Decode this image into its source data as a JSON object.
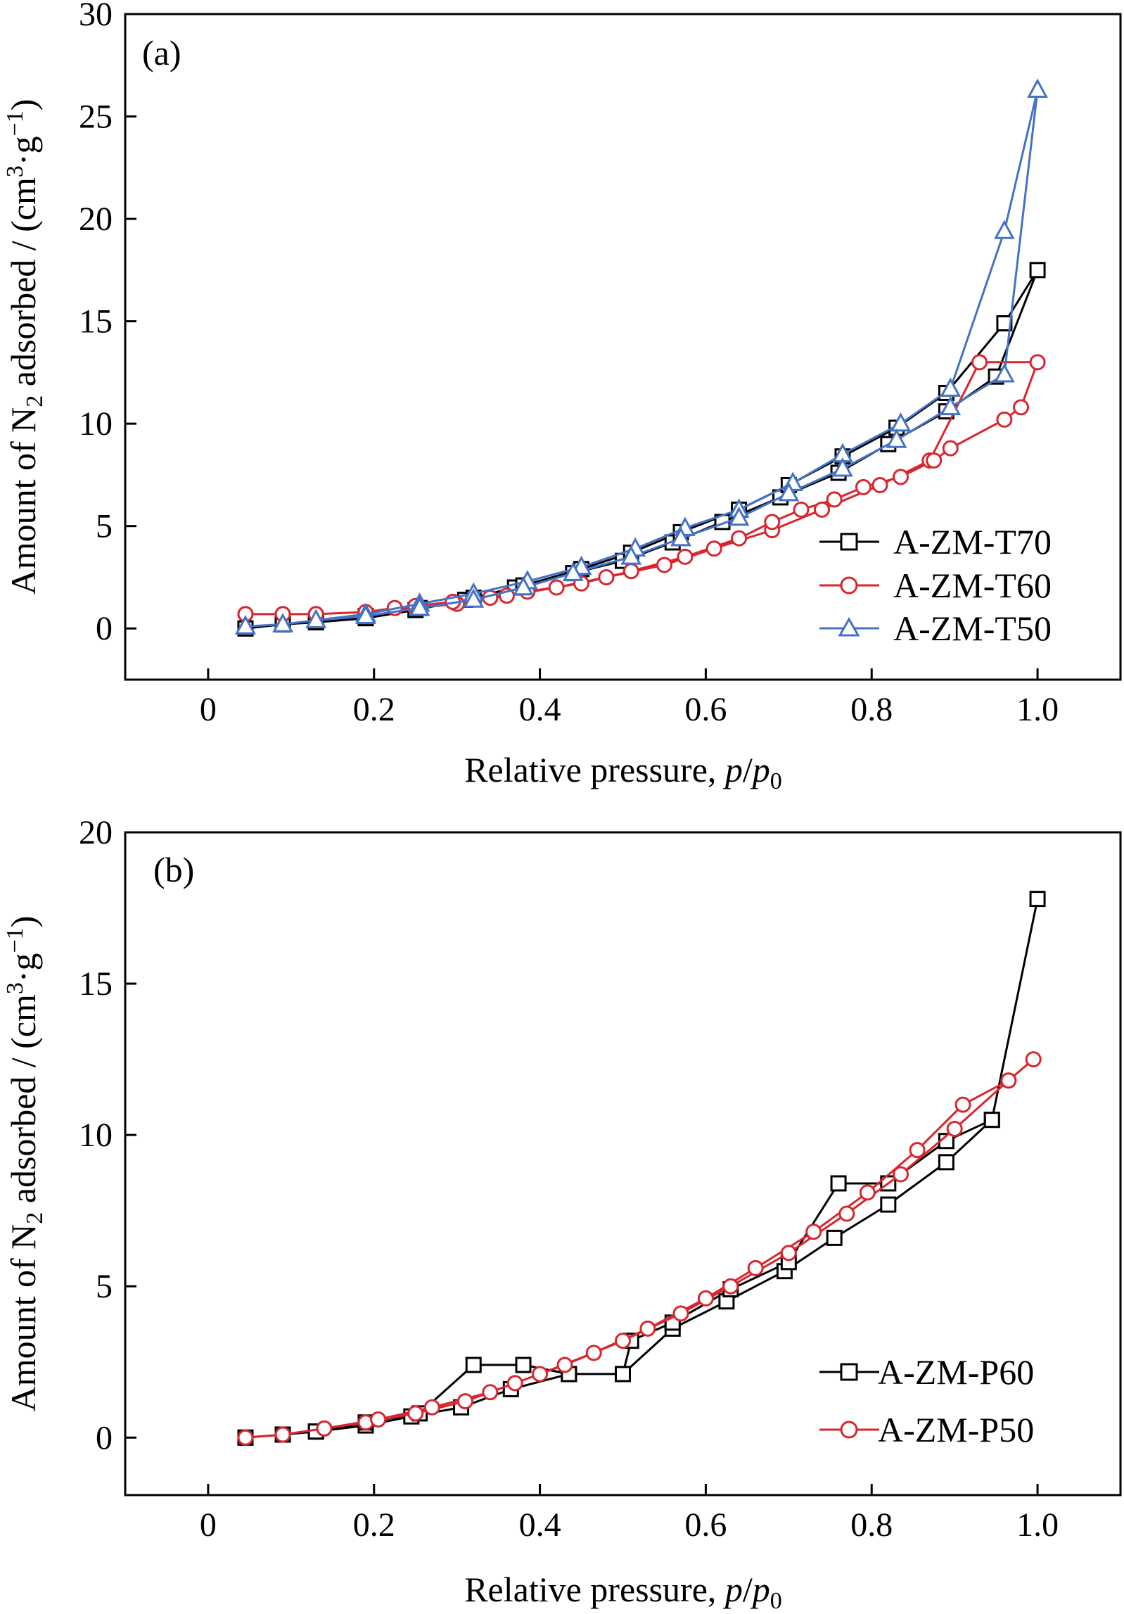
{
  "chart_data": [
    {
      "type": "line",
      "panel_label": "(a)",
      "xlabel_prefix": "Relative pressure, ",
      "xlabel_p": "p",
      "xlabel_slash": "/",
      "xlabel_p0": "p",
      "xlabel_sub": "0",
      "ylabel_prefix": "Amount of N",
      "ylabel_sub": "2",
      "ylabel_mid": " adsorbed / (cm",
      "ylabel_sup1": "3",
      "ylabel_g": "·g",
      "ylabel_sup2": "−1",
      "ylabel_end": ")",
      "xlim": [
        -0.1,
        1.1
      ],
      "ylim": [
        -2.5,
        30
      ],
      "xticks": [
        0,
        0.2,
        0.4,
        0.6,
        0.8,
        1.0
      ],
      "xtick_labels": [
        "0",
        "0.2",
        "0.4",
        "0.6",
        "0.8",
        "1.0"
      ],
      "yticks": [
        0,
        5,
        10,
        15,
        20,
        25,
        30
      ],
      "ytick_labels": [
        "0",
        "5",
        "10",
        "15",
        "20",
        "25",
        "30"
      ],
      "legend_position": "bottom-right",
      "series": [
        {
          "name": "A-ZM-T70",
          "color": "#000000",
          "marker": "square",
          "x": [
            0.045,
            0.09,
            0.13,
            0.19,
            0.25,
            0.31,
            0.37,
            0.44,
            0.5,
            0.56,
            0.62,
            0.69,
            0.76,
            0.82,
            0.89,
            0.95,
            1.0,
            0.96,
            0.89,
            0.83,
            0.765,
            0.7,
            0.64,
            0.57,
            0.51,
            0.45,
            0.38,
            0.32,
            0.255,
            0.19,
            0.13,
            0.09,
            0.045
          ],
          "y": [
            0.0,
            0.2,
            0.3,
            0.5,
            0.9,
            1.4,
            2.0,
            2.7,
            3.3,
            4.2,
            5.2,
            6.4,
            7.6,
            9.0,
            10.6,
            12.3,
            17.5,
            14.9,
            11.5,
            9.8,
            8.4,
            7.0,
            5.8,
            4.7,
            3.7,
            2.9,
            2.1,
            1.5,
            1.0,
            0.6,
            0.3,
            0.2,
            0.0
          ]
        },
        {
          "name": "A-ZM-T60",
          "color": "#d8262f",
          "marker": "circle",
          "x": [
            0.045,
            0.09,
            0.13,
            0.19,
            0.25,
            0.3,
            0.36,
            0.42,
            0.48,
            0.55,
            0.61,
            0.68,
            0.74,
            0.81,
            0.87,
            0.93,
            1.0,
            0.98,
            0.96,
            0.895,
            0.875,
            0.835,
            0.79,
            0.755,
            0.715,
            0.68,
            0.64,
            0.575,
            0.51,
            0.45,
            0.385,
            0.34,
            0.295,
            0.25,
            0.225,
            0.19,
            0.13,
            0.09,
            0.045
          ],
          "y": [
            0.7,
            0.7,
            0.7,
            0.8,
            1.0,
            1.2,
            1.6,
            2.0,
            2.5,
            3.1,
            3.9,
            4.8,
            5.8,
            7.0,
            8.2,
            13.0,
            13.0,
            10.8,
            10.2,
            8.8,
            8.2,
            7.4,
            6.9,
            6.3,
            5.8,
            5.2,
            4.4,
            3.5,
            2.8,
            2.2,
            1.8,
            1.5,
            1.3,
            1.1,
            1.0,
            0.8,
            0.7,
            0.7,
            0.7
          ]
        },
        {
          "name": "A-ZM-T50",
          "color": "#4472c4",
          "marker": "triangle",
          "x": [
            0.045,
            0.09,
            0.13,
            0.19,
            0.255,
            0.32,
            0.385,
            0.45,
            0.515,
            0.575,
            0.64,
            0.705,
            0.765,
            0.835,
            0.895,
            0.96,
            1.0,
            0.96,
            0.895,
            0.83,
            0.765,
            0.7,
            0.64,
            0.57,
            0.51,
            0.44,
            0.38,
            0.32,
            0.255,
            0.19,
            0.13,
            0.09,
            0.045
          ],
          "y": [
            0.1,
            0.2,
            0.4,
            0.7,
            1.2,
            1.7,
            2.3,
            3.0,
            3.9,
            4.9,
            5.8,
            7.1,
            8.5,
            10.0,
            11.7,
            19.4,
            26.3,
            12.4,
            10.8,
            9.2,
            7.8,
            6.6,
            5.4,
            4.4,
            3.5,
            2.7,
            2.0,
            1.4,
            1.0,
            0.6,
            0.4,
            0.2,
            0.1
          ]
        }
      ]
    },
    {
      "type": "line",
      "panel_label": "(b)",
      "xlabel_prefix": "Relative pressure, ",
      "xlabel_p": "p",
      "xlabel_slash": "/",
      "xlabel_p0": "p",
      "xlabel_sub": "0",
      "ylabel_prefix": "Amount of N",
      "ylabel_sub": "2",
      "ylabel_mid": " adsorbed / (cm",
      "ylabel_sup1": "3",
      "ylabel_g": "·g",
      "ylabel_sup2": "−1",
      "ylabel_end": ")",
      "xlim": [
        -0.1,
        1.1
      ],
      "ylim": [
        -1.9,
        20
      ],
      "xticks": [
        0,
        0.2,
        0.4,
        0.6,
        0.8,
        1.0
      ],
      "xtick_labels": [
        "0",
        "0.2",
        "0.4",
        "0.6",
        "0.8",
        "1.0"
      ],
      "yticks": [
        0,
        5,
        10,
        15,
        20
      ],
      "ytick_labels": [
        "0",
        "5",
        "10",
        "15",
        "20"
      ],
      "legend_position": "bottom-right",
      "series": [
        {
          "name": "A-ZM-P60",
          "color": "#000000",
          "marker": "square",
          "x": [
            0.045,
            0.09,
            0.13,
            0.19,
            0.245,
            0.305,
            0.365,
            0.435,
            0.5,
            0.56,
            0.625,
            0.695,
            0.755,
            0.82,
            0.89,
            0.945,
            1.0,
            0.945,
            0.89,
            0.82,
            0.76,
            0.7,
            0.63,
            0.56,
            0.51,
            0.5,
            0.435,
            0.38,
            0.32,
            0.255,
            0.19,
            0.13,
            0.09,
            0.045
          ],
          "y": [
            0.0,
            0.1,
            0.2,
            0.4,
            0.7,
            1.0,
            1.6,
            2.1,
            2.1,
            3.6,
            4.5,
            5.5,
            6.6,
            7.7,
            9.1,
            10.5,
            17.8,
            10.5,
            9.8,
            8.4,
            8.4,
            5.8,
            4.9,
            3.8,
            3.2,
            2.1,
            2.1,
            2.4,
            2.4,
            0.8,
            0.5,
            0.2,
            0.1,
            0.0
          ]
        },
        {
          "name": "A-ZM-P50",
          "color": "#d8262f",
          "marker": "circle",
          "x": [
            0.045,
            0.09,
            0.14,
            0.19,
            0.25,
            0.31,
            0.37,
            0.43,
            0.5,
            0.57,
            0.63,
            0.7,
            0.77,
            0.835,
            0.9,
            0.965,
            0.995,
            0.965,
            0.91,
            0.855,
            0.795,
            0.73,
            0.66,
            0.6,
            0.53,
            0.465,
            0.4,
            0.34,
            0.27,
            0.205,
            0.14,
            0.09,
            0.045
          ],
          "y": [
            0.0,
            0.1,
            0.3,
            0.5,
            0.8,
            1.2,
            1.8,
            2.4,
            3.2,
            4.1,
            5.0,
            6.1,
            7.4,
            8.7,
            10.2,
            11.8,
            12.5,
            11.8,
            11.0,
            9.5,
            8.1,
            6.8,
            5.6,
            4.6,
            3.6,
            2.8,
            2.1,
            1.5,
            1.0,
            0.6,
            0.3,
            0.1,
            0.0
          ]
        }
      ]
    }
  ]
}
